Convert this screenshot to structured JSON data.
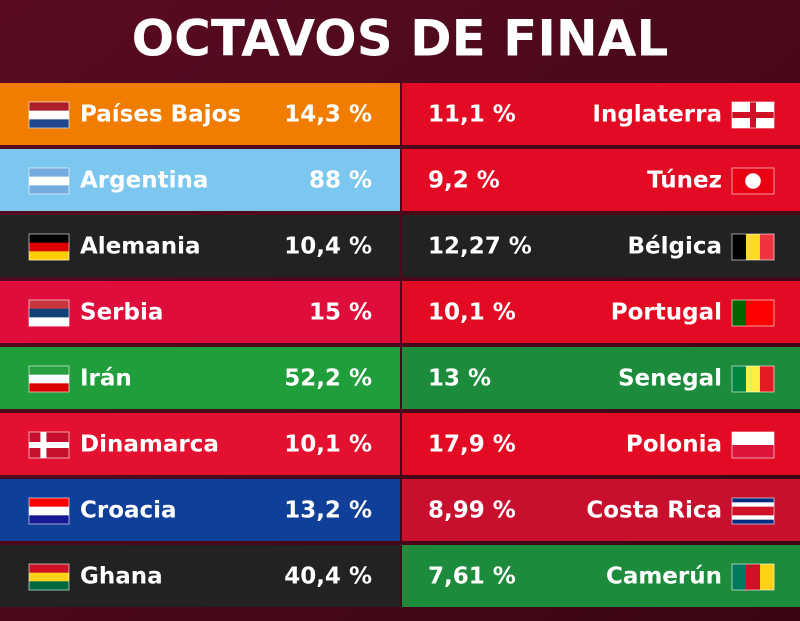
{
  "title": "OCTAVOS DE FINAL",
  "matches": [
    {
      "left": {
        "team": "Países Bajos",
        "percent": "14,3 %"
      },
      "right": {
        "team": "Inglaterra",
        "percent": "11,1 %"
      }
    },
    {
      "left": {
        "team": "Argentina",
        "percent": "88 %"
      },
      "right": {
        "team": "Túnez",
        "percent": "9,2 %"
      }
    },
    {
      "left": {
        "team": "Alemania",
        "percent": "10,4 %"
      },
      "right": {
        "team": "Bélgica",
        "percent": "12,27 %"
      }
    },
    {
      "left": {
        "team": "Serbia",
        "percent": "15 %"
      },
      "right": {
        "team": "Portugal",
        "percent": "10,1 %"
      }
    },
    {
      "left": {
        "team": "Irán",
        "percent": "52,2 %"
      },
      "right": {
        "team": "Senegal",
        "percent": "13 %"
      }
    },
    {
      "left": {
        "team": "Dinamarca",
        "percent": "10,1 %"
      },
      "right": {
        "team": "Polonia",
        "percent": "17,9 %"
      }
    },
    {
      "left": {
        "team": "Croacia",
        "percent": "13,2 %"
      },
      "right": {
        "team": "Costa Rica",
        "percent": "8,99 %"
      }
    },
    {
      "left": {
        "team": "Ghana",
        "percent": "40,4 %"
      },
      "right": {
        "team": "Camerún",
        "percent": "7,61 %"
      }
    }
  ]
}
